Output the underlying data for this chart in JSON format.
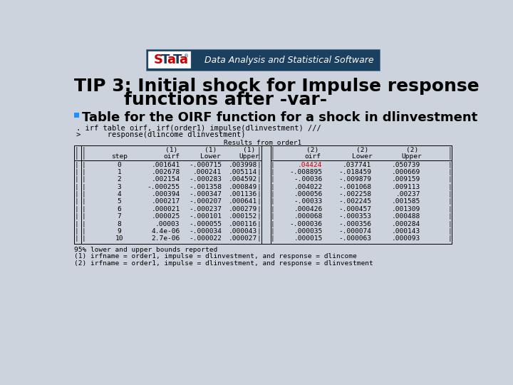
{
  "bg_color": "#cdd3dc",
  "title_line1": "TIP 3: Initial shock for Impulse response",
  "title_line2": "        functions after -var-",
  "title_fontsize": 18,
  "title_color": "#000000",
  "bullet_text": "Table for the OIRF function for a shock in dlinvestment",
  "bullet_fontsize": 13,
  "bullet_color": "#1e90ff",
  "code_line1": ". irf table oirf, irf(order1) impulse(dlinvestment) ///",
  "code_line2": ">      response(dlincome dlinvestment)",
  "code_fontsize": 7.5,
  "results_header": "Results from order1",
  "col_headers_1": [
    "(1)",
    "(1)",
    "(1)",
    "(2)",
    "(2)",
    "(2)"
  ],
  "col_headers_2": [
    "oirf",
    "Lower",
    "Upper",
    "oirf",
    "Lower",
    "Upper"
  ],
  "table_data": [
    [
      "0",
      ".001641",
      "-.000715",
      ".003998",
      ".04424",
      ".037741",
      ".050739"
    ],
    [
      "1",
      ".002678",
      ".000241",
      ".005114",
      "-.008895",
      "-.018459",
      ".000669"
    ],
    [
      "2",
      ".002154",
      "-.000283",
      ".004592",
      "-.00036",
      "-.009879",
      ".009159"
    ],
    [
      "3",
      "-.000255",
      "-.001358",
      ".000849",
      ".004022",
      "-.001068",
      ".009113"
    ],
    [
      "4",
      ".000394",
      "-.000347",
      ".001136",
      ".000056",
      "-.002258",
      ".00237"
    ],
    [
      "5",
      ".000217",
      "-.000207",
      ".000641",
      "-.00033",
      "-.002245",
      ".001585"
    ],
    [
      "6",
      ".000021",
      "-.000237",
      ".000279",
      ".000426",
      "-.000457",
      ".001309"
    ],
    [
      "7",
      ".000025",
      "-.000101",
      ".000152",
      ".000068",
      "-.000353",
      ".000488"
    ],
    [
      "8",
      ".00003",
      "-.000055",
      ".000116",
      "-.000036",
      "-.000356",
      ".000284"
    ],
    [
      "9",
      "4.4e-06",
      "-.000034",
      ".000043",
      ".000035",
      "-.000074",
      ".000143"
    ],
    [
      "10",
      "2.7e-06",
      "-.000022",
      ".000027",
      ".000015",
      "-.000063",
      ".000093"
    ]
  ],
  "highlight_row": 0,
  "highlight_col": 4,
  "highlight_color": "#cc0000",
  "footnote1": "95% lower and upper bounds reported",
  "footnote2": "(1) irfname = order1, impulse = dlinvestment, and response = dlincome",
  "footnote3": "(2) irfname = order1, impulse = dlinvestment, and response = dlinvestment",
  "mono_fontsize": 6.8,
  "logo_bg": "#1a3a5c",
  "logo_text_color": "#ffffff"
}
